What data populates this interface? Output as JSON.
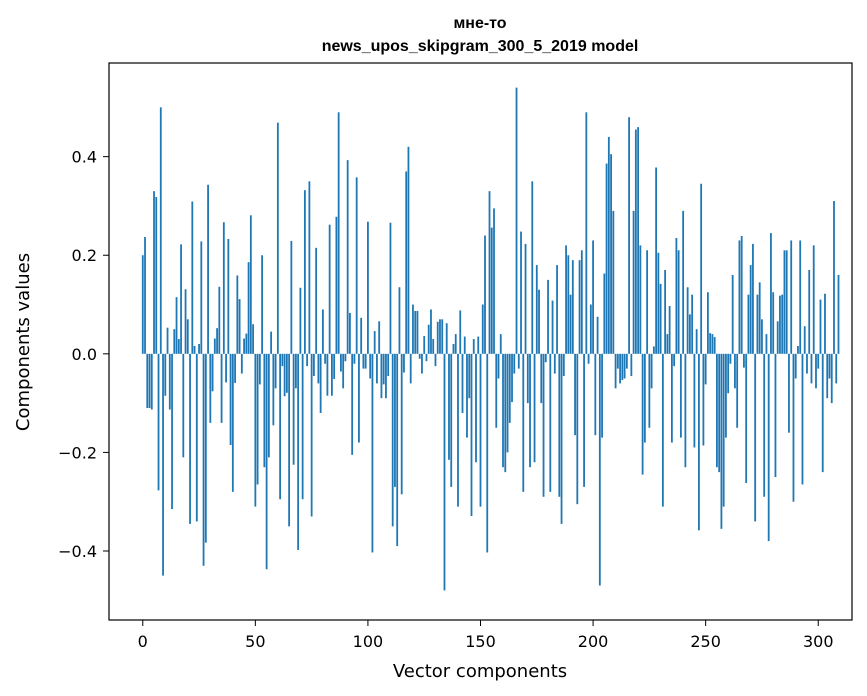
{
  "chart_data": {
    "type": "bar",
    "title": "мне-то",
    "subtitle": "news_upos_skipgram_300_5_2019 model",
    "xlabel": "Vector components",
    "ylabel": "Components values",
    "xlim": [
      -15,
      315
    ],
    "ylim": [
      -0.54,
      0.59
    ],
    "xticks": [
      0,
      50,
      100,
      150,
      200,
      250,
      300
    ],
    "xtick_labels": [
      "0",
      "50",
      "100",
      "150",
      "200",
      "250",
      "300"
    ],
    "yticks": [
      -0.4,
      -0.2,
      0.0,
      0.2,
      0.4
    ],
    "ytick_labels": [
      "−0.4",
      "−0.2",
      "0.0",
      "0.2",
      "0.4"
    ],
    "grid": false,
    "bar_color": "#1f77b4",
    "values": [
      0.2,
      0.237,
      -0.11,
      -0.11,
      -0.113,
      0.33,
      0.318,
      -0.277,
      0.5,
      -0.45,
      -0.085,
      0.053,
      -0.113,
      -0.315,
      0.05,
      0.115,
      0.03,
      0.222,
      -0.21,
      0.131,
      0.07,
      -0.345,
      0.309,
      0.016,
      -0.34,
      0.02,
      0.228,
      -0.43,
      -0.383,
      0.343,
      -0.14,
      -0.076,
      0.031,
      0.052,
      0.136,
      -0.14,
      0.267,
      -0.058,
      0.233,
      -0.185,
      -0.28,
      -0.059,
      0.159,
      0.111,
      -0.04,
      0.031,
      0.041,
      0.186,
      0.281,
      0.06,
      -0.31,
      -0.265,
      -0.062,
      0.2,
      -0.23,
      -0.437,
      -0.21,
      0.045,
      -0.145,
      -0.07,
      0.469,
      -0.295,
      -0.025,
      -0.086,
      -0.079,
      -0.35,
      0.229,
      -0.225,
      -0.07,
      -0.398,
      0.134,
      -0.295,
      0.332,
      -0.025,
      0.35,
      -0.33,
      -0.045,
      0.215,
      -0.06,
      -0.12,
      0.09,
      -0.02,
      -0.085,
      0.262,
      -0.085,
      -0.051,
      0.278,
      0.49,
      -0.036,
      -0.07,
      -0.015,
      0.393,
      0.083,
      -0.205,
      -0.02,
      0.358,
      -0.18,
      0.073,
      -0.03,
      -0.03,
      0.268,
      -0.05,
      -0.403,
      0.046,
      -0.06,
      0.066,
      -0.09,
      -0.062,
      -0.09,
      -0.045,
      0.266,
      -0.35,
      -0.27,
      -0.39,
      0.135,
      -0.285,
      -0.038,
      0.37,
      0.42,
      -0.06,
      0.1,
      0.087,
      0.087,
      -0.01,
      -0.04,
      0.036,
      -0.015,
      0.059,
      0.09,
      0.03,
      -0.025,
      0.065,
      0.07,
      0.07,
      -0.48,
      0.062,
      -0.215,
      -0.27,
      0.02,
      0.04,
      -0.31,
      0.088,
      -0.12,
      0.035,
      -0.17,
      -0.09,
      -0.329,
      0.03,
      -0.22,
      0.035,
      -0.31,
      0.1,
      0.24,
      -0.403,
      0.33,
      0.256,
      0.295,
      -0.15,
      -0.05,
      0.04,
      -0.23,
      -0.24,
      -0.2,
      -0.14,
      -0.098,
      -0.04,
      0.54,
      -0.03,
      0.248,
      -0.28,
      0.223,
      -0.1,
      -0.23,
      0.35,
      -0.22,
      0.18,
      0.13,
      -0.1,
      -0.29,
      -0.017,
      0.15,
      -0.28,
      0.108,
      -0.04,
      0.18,
      -0.29,
      -0.345,
      -0.045,
      0.22,
      0.2,
      0.12,
      0.19,
      -0.165,
      -0.305,
      0.19,
      0.21,
      -0.27,
      0.49,
      -0.02,
      0.1,
      0.23,
      -0.165,
      0.075,
      -0.47,
      -0.17,
      0.163,
      0.386,
      0.44,
      0.405,
      0.29,
      -0.07,
      -0.03,
      -0.06,
      -0.053,
      -0.05,
      -0.03,
      0.48,
      -0.045,
      0.29,
      0.455,
      0.46,
      0.22,
      -0.245,
      -0.18,
      0.21,
      -0.15,
      -0.07,
      0.015,
      0.378,
      0.205,
      0.142,
      -0.31,
      0.17,
      0.04,
      0.097,
      -0.18,
      -0.025,
      0.235,
      0.21,
      -0.17,
      0.29,
      -0.23,
      0.135,
      0.08,
      0.12,
      -0.19,
      0.05,
      -0.358,
      0.345,
      -0.186,
      -0.062,
      0.125,
      0.042,
      0.04,
      0.034,
      -0.23,
      -0.24,
      -0.355,
      -0.31,
      -0.17,
      -0.08,
      -0.02,
      0.16,
      -0.07,
      -0.15,
      0.23,
      0.239,
      -0.028,
      -0.262,
      0.12,
      0.18,
      0.223,
      -0.34,
      0.12,
      0.145,
      0.07,
      -0.29,
      0.04,
      -0.38,
      0.245,
      0.125,
      -0.25,
      0.066,
      0.118,
      0.12,
      0.21,
      0.21,
      -0.16,
      0.23,
      -0.3,
      -0.05,
      0.016,
      0.23,
      -0.265,
      0.056,
      -0.04,
      0.17,
      -0.06,
      0.22,
      -0.07,
      -0.03,
      0.11,
      -0.24,
      0.122,
      -0.09,
      -0.05,
      -0.1,
      0.31,
      -0.06,
      0.16
    ]
  }
}
